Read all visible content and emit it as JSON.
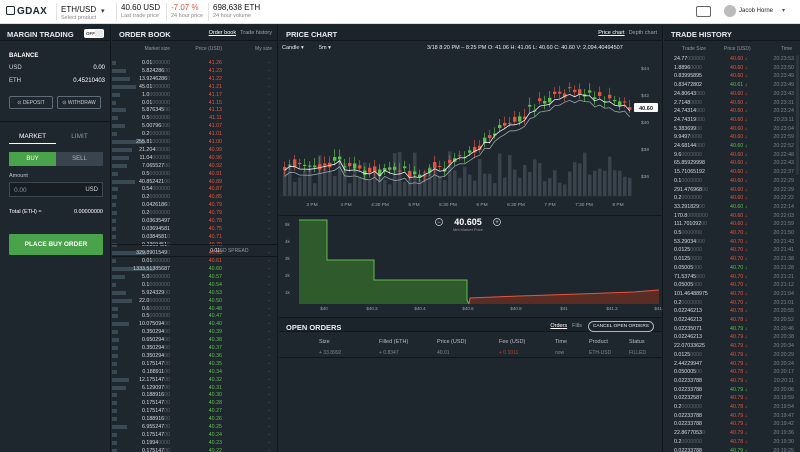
{
  "header": {
    "logo": "GDAX",
    "pair": "ETH/USD",
    "pair_sub": "Select product",
    "last_price": "40.60 USD",
    "last_price_label": "Last trade price",
    "change": "-7.07 %",
    "change_label": "24 hour price",
    "volume": "698,638 ETH",
    "volume_label": "24 hour volume",
    "user": "Jacob Horne"
  },
  "left": {
    "title": "MARGIN TRADING",
    "toggle": "OFF",
    "balance_title": "BALANCE",
    "usd_label": "USD",
    "usd_value": "0.00",
    "eth_label": "ETH",
    "eth_value": "0.45210403",
    "deposit": "DEPOSIT",
    "withdraw": "WITHDRAW",
    "tab_market": "MARKET",
    "tab_limit": "LIMIT",
    "buy": "BUY",
    "sell": "SELL",
    "amount_label": "Amount",
    "amount_placeholder": "0.00",
    "amount_currency": "USD",
    "total_label": "Total (ETH) ≈",
    "total_value": "0.00000000",
    "place_order": "PLACE BUY ORDER"
  },
  "order_book": {
    "title": "ORDER BOOK",
    "link_book": "Order book",
    "link_history": "Trade history",
    "col_size": "Market size",
    "col_price": "Price (USD)",
    "col_my": "My size",
    "spread_label": "USD SPREAD",
    "spread_value": "0.01",
    "my_dash": "-",
    "asks": [
      [
        "0.01",
        "41.26"
      ],
      [
        "5.824286",
        "41.23"
      ],
      [
        "13.9246286",
        "41.22"
      ],
      [
        "45.01",
        "41.21"
      ],
      [
        "1.0",
        "41.17"
      ],
      [
        "0.01",
        "41.15"
      ],
      [
        "5.876345",
        "41.13"
      ],
      [
        "0.5",
        "41.11"
      ],
      [
        "5.00796",
        "41.07"
      ],
      [
        "0.2",
        "41.01"
      ],
      [
        "255.81",
        "41.00"
      ],
      [
        "21.204",
        "40.99"
      ],
      [
        "11.04",
        "40.96"
      ],
      [
        "7.065527",
        "40.92"
      ],
      [
        "0.5",
        "40.91"
      ],
      [
        "40.852421",
        "40.89"
      ],
      [
        "0.54",
        "40.87"
      ],
      [
        "0.2",
        "40.85"
      ],
      [
        "0.0426186",
        "40.79"
      ],
      [
        "0.2",
        "40.79"
      ],
      [
        "0.03635497",
        "40.78"
      ],
      [
        "0.03694581",
        "40.75"
      ],
      [
        "0.0384581",
        "40.71"
      ],
      [
        "0.2369451",
        "40.70"
      ],
      [
        "329.8901549",
        "40.63"
      ],
      [
        "0.01",
        "40.61"
      ]
    ],
    "bids": [
      [
        "1333.51385687",
        "40.60"
      ],
      [
        "5.0",
        "40.57"
      ],
      [
        "0.1",
        "40.54"
      ],
      [
        "5.924329",
        "40.53"
      ],
      [
        "22.0",
        "40.50"
      ],
      [
        "0.6",
        "40.48"
      ],
      [
        "0.5",
        "40.47"
      ],
      [
        "10.075094",
        "40.40"
      ],
      [
        "0.350294",
        "40.39"
      ],
      [
        "0.650294",
        "40.38"
      ],
      [
        "0.350294",
        "40.37"
      ],
      [
        "0.350294",
        "40.36"
      ],
      [
        "0.175147",
        "40.35"
      ],
      [
        "0.188911",
        "40.34"
      ],
      [
        "12.175147",
        "40.32"
      ],
      [
        "6.129097",
        "40.31"
      ],
      [
        "0.188916",
        "40.30"
      ],
      [
        "0.175147",
        "40.28"
      ],
      [
        "0.175147",
        "40.27"
      ],
      [
        "0.188916",
        "40.26"
      ],
      [
        "6.955247",
        "40.25"
      ],
      [
        "0.175147",
        "40.24"
      ],
      [
        "0.1994",
        "40.23"
      ],
      [
        "0.175147",
        "40.22"
      ]
    ]
  },
  "price_chart": {
    "title": "PRICE CHART",
    "link_price": "Price chart",
    "link_depth": "Depth chart",
    "type": "Candle",
    "interval": "5m",
    "ohlc": "3/18 8:20 PM – 8:25 PM  O: 41.06   H: 41.06   L: 40.60   C: 40.60   V: 2,094.40494507",
    "current_price_tag": "40.60",
    "y_ticks": [
      "$44",
      "$42",
      "$40",
      "$38",
      "$36"
    ],
    "x_ticks": [
      "3 PM",
      "4 PM",
      "4:30 PM",
      "5 PM",
      "5:30 PM",
      "6 PM",
      "6:30 PM",
      "7 PM",
      "7:30 PM",
      "8 PM"
    ],
    "mid_price": "40.605",
    "mid_label": "Mid Market Price",
    "depth_y": [
      "5k",
      "4k",
      "3k",
      "2k",
      "1k"
    ],
    "depth_x": [
      "$40",
      "$40.2",
      "$40.4",
      "$40.6",
      "$40.8",
      "$41",
      "$41.2",
      "$41.4"
    ]
  },
  "open_orders": {
    "title": "OPEN ORDERS",
    "link_orders": "Orders",
    "link_fills": "Fills",
    "cancel_all": "CANCEL OPEN ORDERS",
    "cols": [
      "Size",
      "Filled (ETH)",
      "Price (USD)",
      "Fee (USD)",
      "Time",
      "Product",
      "Status"
    ],
    "row": [
      "+ 33.8992",
      "+ 0.8347",
      "40.01",
      "+ 0.1011",
      "now",
      "ETH-USD",
      "FILLED"
    ]
  },
  "trade_history": {
    "title": "TRADE HISTORY",
    "col_size": "Trade Size",
    "col_price": "Price (USD)",
    "col_time": "Time",
    "rows": [
      [
        "24.77",
        "40.60",
        "20:23:53"
      ],
      [
        "1.8896",
        "40.60",
        "20:23:50"
      ],
      [
        "0.83995895",
        "40.60",
        "20:23:49"
      ],
      [
        "0.83472802",
        "40.61",
        "20:23:49"
      ],
      [
        "24.80643",
        "40.60",
        "20:23:43"
      ],
      [
        "2.7148",
        "40.60",
        "20:23:31"
      ],
      [
        "24.74314",
        "40.60",
        "20:23:24"
      ],
      [
        "24.74319",
        "40.60",
        "20:23:11"
      ],
      [
        "5.383699",
        "40.60",
        "20:23:04"
      ],
      [
        "9.9497",
        "40.60",
        "20:22:59"
      ],
      [
        "24.68144",
        "40.60",
        "20:22:52"
      ],
      [
        "9.6",
        "40.60",
        "20:22:48"
      ],
      [
        "65.85929998",
        "40.60",
        "20:22:43"
      ],
      [
        "15.71065192",
        "40.60",
        "20:22:37"
      ],
      [
        "0.1",
        "40.60",
        "20:22:29"
      ],
      [
        "291.476968",
        "40.60",
        "20:22:29"
      ],
      [
        "0.2",
        "40.60",
        "20:22:22"
      ],
      [
        "33.291829",
        "40.60",
        "20:22:14"
      ],
      [
        "170.8",
        "40.60",
        "20:22:03"
      ],
      [
        "111.701092",
        "40.60",
        "20:21:59"
      ],
      [
        "0.5",
        "40.70",
        "20:21:50"
      ],
      [
        "53.29034",
        "40.70",
        "20:21:43"
      ],
      [
        "0.0125",
        "40.70",
        "20:21:41"
      ],
      [
        "0.0125",
        "40.70",
        "20:21:38"
      ],
      [
        "0.05005",
        "40.70",
        "20:21:28"
      ],
      [
        "71.53745",
        "40.70",
        "20:21:21"
      ],
      [
        "0.05005",
        "40.70",
        "20:21:12"
      ],
      [
        "101.46488975",
        "40.70",
        "20:21:04"
      ],
      [
        "0.2",
        "40.70",
        "20:21:01"
      ],
      [
        "0.02246213",
        "40.78",
        "20:20:55"
      ],
      [
        "0.02246213",
        "40.78",
        "20:20:52"
      ],
      [
        "0.02235071",
        "40.79",
        "20:20:46"
      ],
      [
        "0.02246213",
        "40.79",
        "20:20:38"
      ],
      [
        "22.07033625",
        "40.79",
        "20:20:34"
      ],
      [
        "0.0125",
        "40.79",
        "20:20:29"
      ],
      [
        "2.44229947",
        "40.79",
        "20:20:24"
      ],
      [
        "0.050005",
        "40.78",
        "20:20:17"
      ],
      [
        "0.02233788",
        "40.79",
        "20:20:11"
      ],
      [
        "0.02233788",
        "40.79",
        "20:20:06"
      ],
      [
        "0.02232587",
        "40.79",
        "20:19:59"
      ],
      [
        "0.2",
        "40.78",
        "20:19:54"
      ],
      [
        "0.02233788",
        "40.79",
        "20:19:47"
      ],
      [
        "0.02233788",
        "40.79",
        "20:19:42"
      ],
      [
        "22.8677053",
        "40.79",
        "20:19:36"
      ],
      [
        "0.2",
        "40.78",
        "20:19:30"
      ],
      [
        "0.02233788",
        "40.79",
        "20:19:25"
      ]
    ]
  },
  "colors": {
    "ask": "#e2563f",
    "bid": "#5fbf4c",
    "bg": "#1e262e",
    "header": "#1b232b",
    "buy": "#4aa34a"
  }
}
